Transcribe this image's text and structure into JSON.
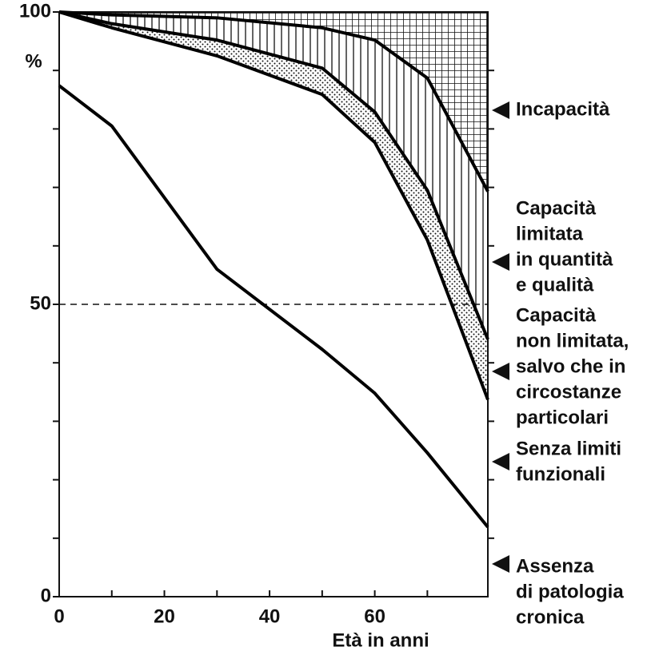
{
  "chart_data": {
    "type": "line",
    "x_label": "Età in anni",
    "y_unit": "%",
    "x": [
      0,
      10,
      30,
      50,
      60,
      70,
      81.5
    ],
    "series": [
      {
        "name": [
          "Assenza",
          "di patologia",
          "cronica"
        ],
        "color": "#000000",
        "values": [
          87.4,
          80.5,
          56,
          42.3,
          34.8,
          24.6,
          11.9
        ]
      },
      {
        "name": [
          "Senza limiti",
          "funzionali"
        ],
        "color": "#000000",
        "values": [
          100,
          97.3,
          92.5,
          85.9,
          77.7,
          61,
          33.7
        ]
      },
      {
        "name": [
          "Capacità",
          "non limitata,",
          "salvo che in",
          "circostanze",
          "particolari"
        ],
        "color": "#000000",
        "values": [
          100,
          98,
          95.2,
          90.4,
          82.9,
          69.5,
          44
        ]
      },
      {
        "name": [
          "Capacità",
          "limitata",
          "in quantità",
          "e qualità"
        ],
        "color": "#000000",
        "values": [
          100,
          99.5,
          99,
          97.3,
          95.2,
          88.7,
          69.3
        ]
      }
    ],
    "top_region": [
      "Incapacità"
    ],
    "xlim": [
      0,
      81.5
    ],
    "ylim": [
      0,
      100
    ],
    "xticks": [
      0,
      20,
      40,
      60
    ],
    "xminor": [
      10,
      30,
      50,
      70
    ],
    "yticks": [
      0,
      50,
      100
    ],
    "yminor": [
      10,
      20,
      30,
      40,
      60,
      70,
      80,
      90
    ],
    "dashed_line": 50
  }
}
